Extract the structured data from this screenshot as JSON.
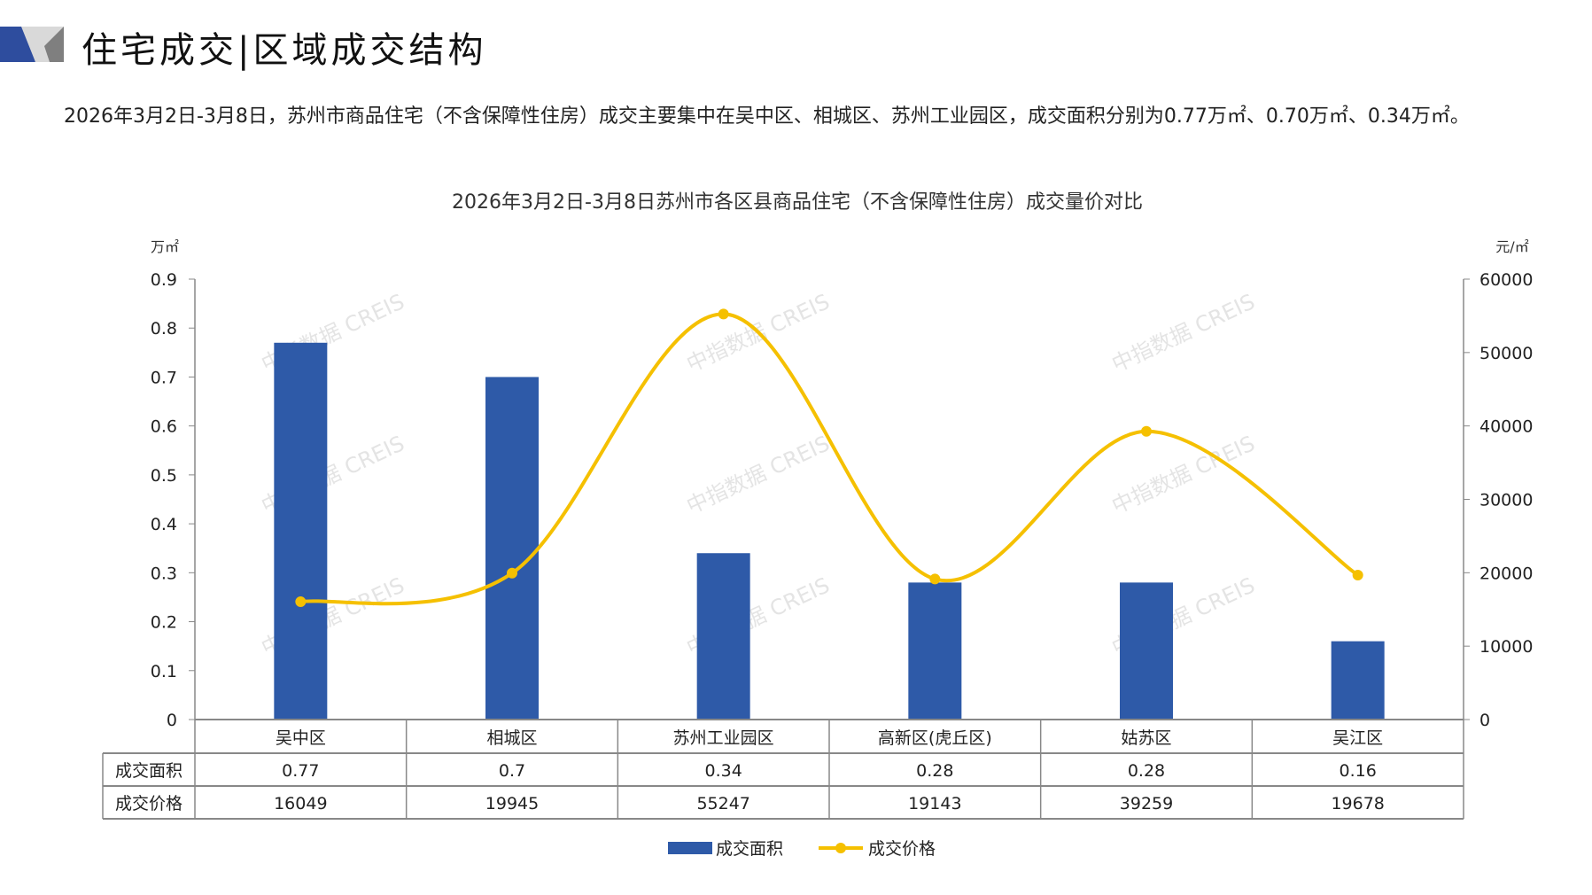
{
  "header": {
    "title": "住宅成交|区域成交结构"
  },
  "summary": {
    "text": "2026年3月2日-3月8日，苏州市商品住宅（不含保障性住房）成交主要集中在吴中区、相城区、苏州工业园区，成交面积分别为0.77万㎡、0.70万㎡、0.34万㎡。"
  },
  "watermark": "中指数据 CREIS",
  "colors": {
    "bar": "#2E5AA8",
    "line": "#F5C000",
    "deco_blue": "#2E4D9E",
    "deco_gray": "#A6A6A6"
  },
  "chart_data": {
    "type": "bar+line",
    "title": "2026年3月2日-3月8日苏州市各区县商品住宅（不含保障性住房）成交量价对比",
    "ylabel_left": "万㎡",
    "ylabel_right": "元/㎡",
    "ylim_left": [
      0,
      0.9
    ],
    "yticks_left": [
      "0",
      "0.1",
      "0.2",
      "0.3",
      "0.4",
      "0.5",
      "0.6",
      "0.7",
      "0.8",
      "0.9"
    ],
    "ylim_right": [
      0,
      60000
    ],
    "yticks_right": [
      "0",
      "10000",
      "20000",
      "30000",
      "40000",
      "50000",
      "60000"
    ],
    "categories": [
      "吴中区",
      "相城区",
      "苏州工业园区",
      "高新区(虎丘区)",
      "姑苏区",
      "吴江区"
    ],
    "series": [
      {
        "name": "成交面积",
        "type": "bar",
        "axis": "left",
        "values": [
          0.77,
          0.7,
          0.34,
          0.28,
          0.28,
          0.16
        ],
        "labels": [
          "0.77",
          "0.7",
          "0.34",
          "0.28",
          "0.28",
          "0.16"
        ]
      },
      {
        "name": "成交价格",
        "type": "line",
        "axis": "right",
        "values": [
          16049,
          19945,
          55247,
          19143,
          39259,
          19678
        ],
        "labels": [
          "16049",
          "19945",
          "55247",
          "19143",
          "39259",
          "19678"
        ]
      }
    ],
    "legend": "bottom"
  }
}
